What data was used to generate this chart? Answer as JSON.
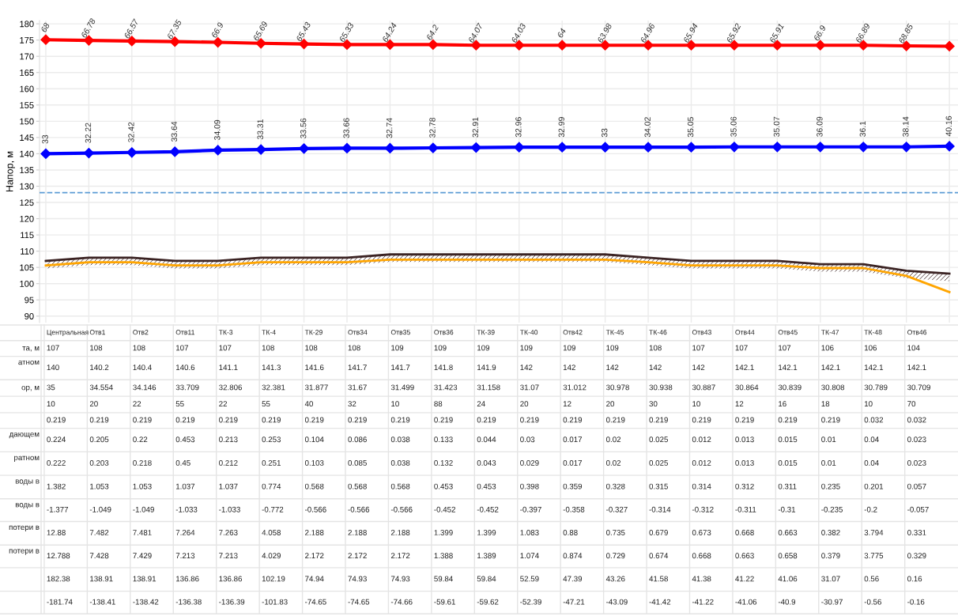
{
  "chart_data": {
    "type": "line",
    "ylabel": "Напор, м",
    "categories": [
      "Центральная",
      "Отв1",
      "Отв2",
      "Отв11",
      "ТК-3",
      "ТК-4",
      "ТК-29",
      "Отв34",
      "Отв35",
      "Отв36",
      "ТК-39",
      "ТК-40",
      "Отв42",
      "ТК-45",
      "ТК-46",
      "Отв43",
      "Отв44",
      "Отв45",
      "ТК-47",
      "ТК-48",
      "Отв46",
      null
    ],
    "series": [
      {
        "type": "line",
        "color": "#ff0000",
        "marker": "diamond",
        "values": [
          175.1,
          174.9,
          174.7,
          174.5,
          174.3,
          174.0,
          173.8,
          173.6,
          173.6,
          173.6,
          173.4,
          173.4,
          173.4,
          173.4,
          173.4,
          173.4,
          173.4,
          173.4,
          173.4,
          173.4,
          173.2,
          173.1
        ]
      },
      {
        "type": "line",
        "color": "#0000ff",
        "marker": "diamond",
        "values": [
          140,
          140.2,
          140.4,
          140.6,
          141.1,
          141.3,
          141.6,
          141.7,
          141.7,
          141.8,
          141.9,
          142,
          142,
          142,
          142,
          142,
          142.1,
          142.1,
          142.1,
          142.1,
          142.1,
          142.3
        ]
      },
      {
        "type": "line",
        "color": "#3b2323",
        "marker": "none",
        "values": [
          107,
          108,
          108,
          107,
          107,
          108,
          108,
          108,
          109,
          109,
          109,
          109,
          109,
          109,
          108,
          107,
          107,
          107,
          106,
          106,
          104,
          103.1
        ],
        "upper": [
          107,
          108,
          108,
          107,
          107,
          108,
          108,
          108,
          109,
          109,
          109,
          109,
          109,
          109,
          108,
          107,
          107,
          107,
          106,
          106,
          104,
          103.1
        ],
        "lower": [
          104.7,
          105.7,
          105.7,
          104.7,
          104.7,
          105.7,
          105.7,
          105.7,
          106.7,
          106.7,
          106.7,
          106.7,
          106.7,
          106.7,
          105.7,
          104.7,
          104.7,
          104.7,
          103.7,
          103.7,
          101.7,
          100.8
        ]
      },
      {
        "type": "line",
        "color": "#ffa500",
        "marker": "none",
        "values": [
          105.6,
          106.6,
          106.6,
          105.6,
          105.6,
          106.6,
          106.6,
          106.6,
          107.4,
          107.4,
          107.4,
          107.4,
          107.4,
          107.4,
          106.6,
          105.6,
          105.6,
          105.6,
          104.8,
          104.8,
          102.4,
          97.4
        ]
      }
    ],
    "ylim": [
      88,
      181
    ],
    "yticks": [
      90,
      95,
      100,
      105,
      110,
      115,
      120,
      125,
      130,
      135,
      140,
      145,
      150,
      155,
      160,
      165,
      170,
      175,
      180
    ],
    "grid": true,
    "ref_lines": [
      {
        "axis": "y",
        "value": 128,
        "color": "#5b9bd5",
        "line_style": "dashed"
      }
    ],
    "annotations": [
      {
        "text": "68",
        "x": "Центральная",
        "y": 175.1
      },
      {
        "text": "66.78",
        "x": "Отв1",
        "y": 174.9
      },
      {
        "text": "66.57",
        "x": "Отв2",
        "y": 174.7
      },
      {
        "text": "67.35",
        "x": "Отв11",
        "y": 174.5
      },
      {
        "text": "66.9",
        "x": "ТК-3",
        "y": 174.3
      },
      {
        "text": "65.69",
        "x": "ТК-4",
        "y": 174.0
      },
      {
        "text": "65.43",
        "x": "ТК-29",
        "y": 173.8
      },
      {
        "text": "65.33",
        "x": "Отв34",
        "y": 173.6
      },
      {
        "text": "64.24",
        "x": "Отв35",
        "y": 173.6
      },
      {
        "text": "64.2",
        "x": "Отв36",
        "y": 173.6
      },
      {
        "text": "64.07",
        "x": "ТК-39",
        "y": 173.4
      },
      {
        "text": "64.03",
        "x": "ТК-40",
        "y": 173.4
      },
      {
        "text": "64",
        "x": "Отв42",
        "y": 173.4
      },
      {
        "text": "63.98",
        "x": "ТК-45",
        "y": 173.4
      },
      {
        "text": "64.96",
        "x": "ТК-46",
        "y": 173.4
      },
      {
        "text": "65.94",
        "x": "Отв43",
        "y": 173.4
      },
      {
        "text": "65.92",
        "x": "Отв44",
        "y": 173.4
      },
      {
        "text": "65.91",
        "x": "Отв45",
        "y": 173.4
      },
      {
        "text": "66.9",
        "x": "ТК-47",
        "y": 173.4
      },
      {
        "text": "66.89",
        "x": "ТК-48",
        "y": 173.4
      },
      {
        "text": "68.85",
        "x": "Отв46",
        "y": 173.2
      },
      {
        "text": "33",
        "x": "Центральная",
        "y": 140
      },
      {
        "text": "32.22",
        "x": "Отв1",
        "y": 140.2
      },
      {
        "text": "32.42",
        "x": "Отв2",
        "y": 140.4
      },
      {
        "text": "33.64",
        "x": "Отв11",
        "y": 140.6
      },
      {
        "text": "34.09",
        "x": "ТК-3",
        "y": 141.1
      },
      {
        "text": "33.31",
        "x": "ТК-4",
        "y": 141.3
      },
      {
        "text": "33.56",
        "x": "ТК-29",
        "y": 141.6
      },
      {
        "text": "33.66",
        "x": "Отв34",
        "y": 141.7
      },
      {
        "text": "32.74",
        "x": "Отв35",
        "y": 141.7
      },
      {
        "text": "32.78",
        "x": "Отв36",
        "y": 141.8
      },
      {
        "text": "32.91",
        "x": "ТК-39",
        "y": 141.9
      },
      {
        "text": "32.96",
        "x": "ТК-40",
        "y": 142
      },
      {
        "text": "32.99",
        "x": "Отв42",
        "y": 142
      },
      {
        "text": "33",
        "x": "ТК-45",
        "y": 142
      },
      {
        "text": "34.02",
        "x": "ТК-46",
        "y": 142
      },
      {
        "text": "35.05",
        "x": "Отв43",
        "y": 142
      },
      {
        "text": "35.06",
        "x": "Отв44",
        "y": 142.1
      },
      {
        "text": "35.07",
        "x": "Отв45",
        "y": 142.1
      },
      {
        "text": "36.09",
        "x": "ТК-47",
        "y": 142.1
      },
      {
        "text": "36.1",
        "x": "ТК-48",
        "y": 142.1
      },
      {
        "text": "38.14",
        "x": "Отв46",
        "y": 142.1
      },
      {
        "text": "40.16",
        "y": 142.3
      },
      "107",
      "108",
      "108",
      "107",
      "107",
      "108",
      "108",
      "108",
      "109",
      "109",
      "109",
      "109",
      "109",
      "109",
      "108",
      "107",
      "107",
      "107",
      "106",
      "106",
      "104",
      "140",
      "140.2",
      "140.4",
      "140.6",
      "141.1",
      "141.3",
      "141.6",
      "141.7",
      "141.7",
      "141.8",
      "141.9",
      "142",
      "142",
      "142",
      "142",
      "142",
      "142.1",
      "142.1",
      "142.1",
      "142.1",
      "142.1",
      "35",
      "34.554",
      "34.146",
      "33.709",
      "32.806",
      "32.381",
      "31.877",
      "31.67",
      "31.499",
      "31.423",
      "31.158",
      "31.07",
      "31.012",
      "30.978",
      "30.938",
      "30.887",
      "30.864",
      "30.839",
      "30.808",
      "30.789",
      "30.709",
      "10",
      "20",
      "22",
      "55",
      "22",
      "55",
      "40",
      "32",
      "10",
      "88",
      "24",
      "20",
      "12",
      "20",
      "30",
      "10",
      "12",
      "16",
      "18",
      "10",
      "70",
      "0.219",
      "0.219",
      "0.219",
      "0.219",
      "0.219",
      "0.219",
      "0.219",
      "0.219",
      "0.219",
      "0.219",
      "0.219",
      "0.219",
      "0.219",
      "0.219",
      "0.219",
      "0.219",
      "0.219",
      "0.219",
      "0.219",
      "0.032",
      "0.032",
      "0.224",
      "0.205",
      "0.22",
      "0.453",
      "0.213",
      "0.253",
      "0.104",
      "0.086",
      "0.038",
      "0.133",
      "0.044",
      "0.03",
      "0.017",
      "0.02",
      "0.025",
      "0.012",
      "0.013",
      "0.015",
      "0.01",
      "0.04",
      "0.023",
      "0.222",
      "0.203",
      "0.218",
      "0.45",
      "0.212",
      "0.251",
      "0.103",
      "0.085",
      "0.038",
      "0.132",
      "0.043",
      "0.029",
      "0.017",
      "0.02",
      "0.025",
      "0.012",
      "0.013",
      "0.015",
      "0.01",
      "0.04",
      "0.023",
      "1.382",
      "1.053",
      "1.053",
      "1.037",
      "1.037",
      "0.774",
      "0.568",
      "0.568",
      "0.568",
      "0.453",
      "0.453",
      "0.398",
      "0.359",
      "0.328",
      "0.315",
      "0.314",
      "0.312",
      "0.311",
      "0.235",
      "0.201",
      "0.057",
      "-1.377",
      "-1.049",
      "-1.049",
      "-1.033",
      "-1.033",
      "-0.772",
      "-0.566",
      "-0.566",
      "-0.566",
      "-0.452",
      "-0.452",
      "-0.397",
      "-0.358",
      "-0.327",
      "-0.314",
      "-0.312",
      "-0.311",
      "-0.31",
      "-0.235",
      "-0.2",
      "-0.057",
      "12.88",
      "7.482",
      "7.481",
      "7.264",
      "7.263",
      "4.058",
      "2.188",
      "2.188",
      "2.188",
      "1.399",
      "1.399",
      "1.083",
      "0.88",
      "0.735",
      "0.679",
      "0.673",
      "0.668",
      "0.663",
      "0.382",
      "3.794",
      "0.331",
      "12.788",
      "7.428",
      "7.429",
      "7.213",
      "7.213",
      "4.029",
      "2.172",
      "2.172",
      "2.172",
      "1.388",
      "1.389",
      "1.074",
      "0.874",
      "0.729",
      "0.674",
      "0.668",
      "0.663",
      "0.658",
      "0.379",
      "3.775",
      "0.329",
      "182.38",
      "138.91",
      "138.91",
      "136.86",
      "136.86",
      "102.19",
      "74.94",
      "74.93",
      "74.93",
      "59.84",
      "59.84",
      "52.59",
      "47.39",
      "43.26",
      "41.58",
      "41.38",
      "41.22",
      "41.06",
      "31.07",
      "0.56",
      "0.16",
      "-181.74",
      "-138.41",
      "-138.42",
      "-136.38",
      "-136.39",
      "-101.83",
      "-74.65",
      "-74.65",
      "-74.66",
      "-59.61",
      "-59.62",
      "-52.39",
      "-47.21",
      "-43.09",
      "-41.42",
      "-41.22",
      "-41.06",
      "-40.9",
      "-30.97",
      "-0.56",
      "-0.16",
      "та, м",
      "атном",
      "ор, м",
      "дающем",
      "ратном",
      "воды в",
      "воды в",
      "потери в",
      "потери в"
    ]
  }
}
